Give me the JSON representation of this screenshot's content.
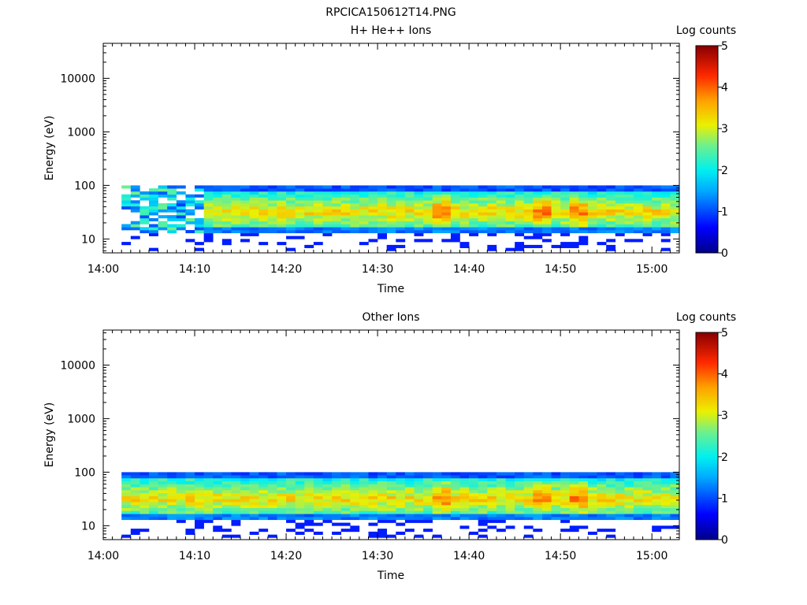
{
  "figure": {
    "title": "RPCICA150612T14.PNG"
  },
  "chart_data": [
    {
      "type": "heatmap",
      "title": "H+ He++ Ions",
      "xlabel": "Time",
      "ylabel": "Energy (eV)",
      "x_ticks": [
        "14:00",
        "14:10",
        "14:20",
        "14:30",
        "14:40",
        "14:50",
        "15:00"
      ],
      "xlim": [
        "14:00",
        "15:03"
      ],
      "y_scale": "log",
      "y_ticks": [
        10,
        100,
        1000,
        10000
      ],
      "y_tick_labels": [
        "10",
        "100",
        "1000",
        "10000"
      ],
      "ylim": [
        5.5,
        45000
      ],
      "data_x_range": [
        "14:02",
        "15:03"
      ],
      "data_energy_range_eV": [
        6,
        100
      ],
      "grid": false,
      "colorbar": {
        "label": "Log counts",
        "range": [
          0,
          5
        ],
        "ticks": [
          "0",
          "1",
          "2",
          "3",
          "4",
          "5"
        ],
        "colormap": "rainbow (dark blue to dark red)"
      },
      "features": {
        "sparse_blue_before": "14:11",
        "bright_bursts": [
          "14:37",
          "14:48",
          "14:52"
        ]
      }
    },
    {
      "type": "heatmap",
      "title": "Other Ions",
      "xlabel": "Time",
      "ylabel": "Energy (eV)",
      "x_ticks": [
        "14:00",
        "14:10",
        "14:20",
        "14:30",
        "14:40",
        "14:50",
        "15:00"
      ],
      "xlim": [
        "14:00",
        "15:03"
      ],
      "y_scale": "log",
      "y_ticks": [
        10,
        100,
        1000,
        10000
      ],
      "y_tick_labels": [
        "10",
        "100",
        "1000",
        "10000"
      ],
      "ylim": [
        5.5,
        45000
      ],
      "data_x_range": [
        "14:02",
        "15:03"
      ],
      "data_energy_range_eV": [
        6,
        100
      ],
      "grid": false,
      "colorbar": {
        "label": "Log counts",
        "range": [
          0,
          5
        ],
        "ticks": [
          "0",
          "1",
          "2",
          "3",
          "4",
          "5"
        ],
        "colormap": "rainbow (dark blue to dark red)"
      },
      "features": {
        "bright_bursts": [
          "14:37",
          "14:48",
          "14:52"
        ]
      }
    }
  ]
}
